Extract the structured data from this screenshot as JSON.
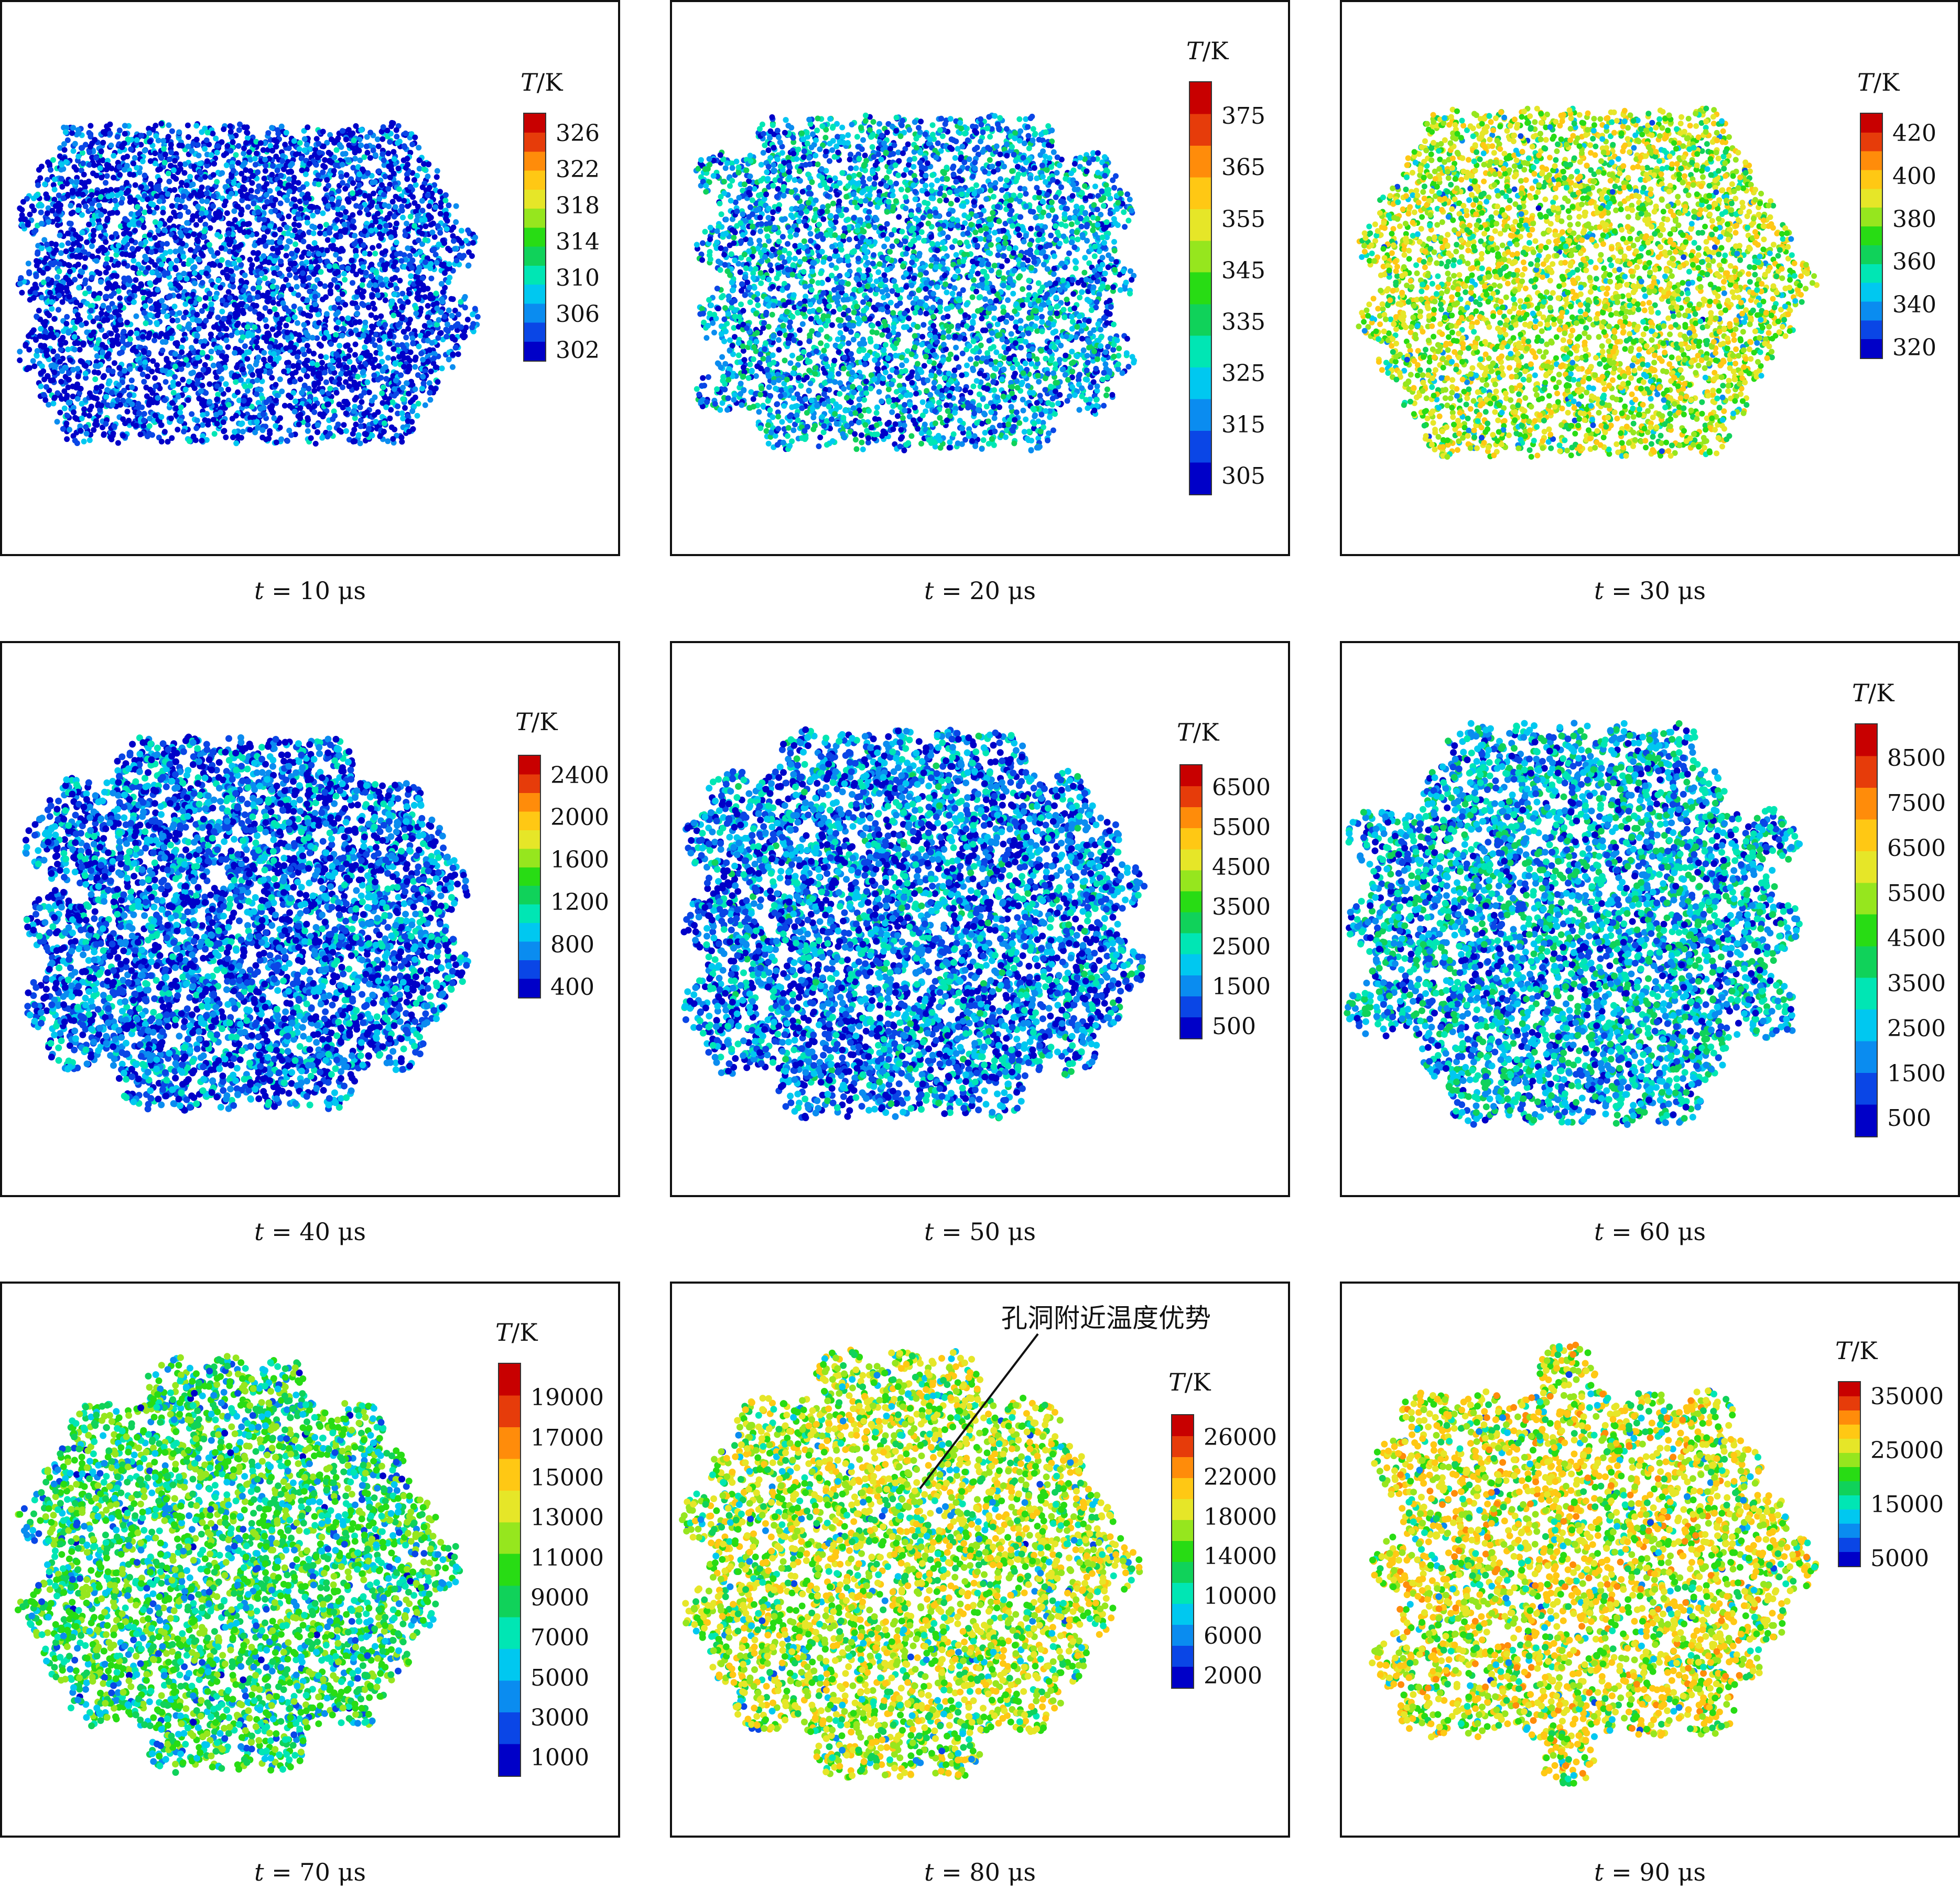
{
  "panels": [
    {
      "time_label": "t = 10 μs",
      "time_value": "10",
      "cb_title": "T/K",
      "ticks": [
        "326",
        "322",
        "318",
        "314",
        "310",
        "306",
        "302"
      ],
      "heat": 0.02
    },
    {
      "time_label": "t = 20 μs",
      "time_value": "20",
      "cb_title": "T/K",
      "ticks": [
        "375",
        "365",
        "355",
        "345",
        "335",
        "325",
        "315",
        "305"
      ],
      "heat": 0.12
    },
    {
      "time_label": "t = 30 μs",
      "time_value": "30",
      "cb_title": "T/K",
      "ticks": [
        "420",
        "400",
        "380",
        "360",
        "340",
        "320"
      ],
      "heat": 0.45
    },
    {
      "time_label": "t = 40 μs",
      "time_value": "40",
      "cb_title": "T/K",
      "ticks": [
        "2400",
        "2000",
        "1600",
        "1200",
        "800",
        "400"
      ],
      "heat": 0.06
    },
    {
      "time_label": "t = 50 μs",
      "time_value": "50",
      "cb_title": "T/K",
      "ticks": [
        "6500",
        "5500",
        "4500",
        "3500",
        "2500",
        "1500",
        "500"
      ],
      "heat": 0.08
    },
    {
      "time_label": "t = 60 μs",
      "time_value": "60",
      "cb_title": "T/K",
      "ticks": [
        "8500",
        "7500",
        "6500",
        "5500",
        "4500",
        "3500",
        "2500",
        "1500",
        "500"
      ],
      "heat": 0.14
    },
    {
      "time_label": "t = 70 μs",
      "time_value": "70",
      "cb_title": "T/K",
      "ticks": [
        "19000",
        "17000",
        "15000",
        "13000",
        "11000",
        "9000",
        "7000",
        "5000",
        "3000",
        "1000"
      ],
      "heat": 0.3
    },
    {
      "time_label": "t = 80 μs",
      "time_value": "80",
      "cb_title": "T/K",
      "ticks": [
        "26000",
        "22000",
        "18000",
        "14000",
        "10000",
        "6000",
        "2000"
      ],
      "heat": 0.45
    },
    {
      "time_label": "t = 90 μs",
      "time_value": "90",
      "cb_title": "T/K",
      "ticks": [
        "35000",
        "25000",
        "15000",
        "5000"
      ],
      "heat": 0.5
    }
  ],
  "annotation": "孔洞附近温度优势",
  "colormap": [
    "#0000c8",
    "#0a46e6",
    "#0a8cf0",
    "#00c8f0",
    "#00e6b4",
    "#10d25a",
    "#28dc14",
    "#96e61e",
    "#e6e628",
    "#ffc814",
    "#ff8c0a",
    "#e63c0a",
    "#c80000"
  ]
}
